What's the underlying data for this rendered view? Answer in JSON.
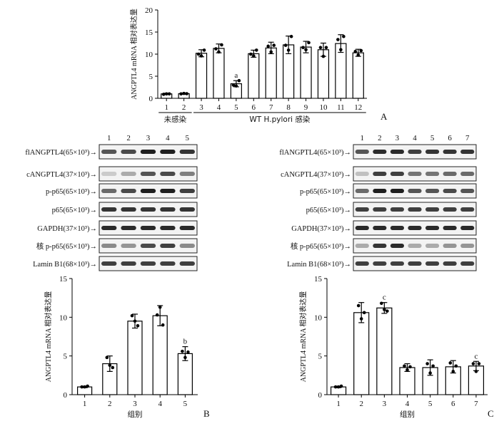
{
  "chart_data": [
    {
      "panel": "A",
      "type": "bar",
      "ylabel": "ANGPTL4 mRNA 相对表达量",
      "ylim": [
        0,
        20
      ],
      "yticks": [
        0,
        5,
        10,
        15,
        20
      ],
      "categories": [
        "1",
        "2",
        "3",
        "4",
        "5",
        "6",
        "7",
        "8",
        "9",
        "10",
        "11",
        "12"
      ],
      "values": [
        1.0,
        1.05,
        10.2,
        11.3,
        3.3,
        10.1,
        11.4,
        12.1,
        11.6,
        11.0,
        12.4,
        10.3
      ],
      "errors": [
        0.15,
        0.15,
        0.8,
        1.0,
        0.7,
        0.8,
        1.3,
        2.0,
        1.3,
        1.5,
        2.0,
        0.8
      ],
      "points": [
        [
          0.9,
          1.0,
          1.0
        ],
        [
          1.0,
          1.1,
          1.05
        ],
        [
          10.0,
          9.6,
          10.9
        ],
        [
          11.2,
          10.5,
          12.1
        ],
        [
          3.0,
          2.8,
          4.0
        ],
        [
          10.0,
          9.6,
          10.9
        ],
        [
          11.8,
          10.5,
          12.0
        ],
        [
          12.0,
          10.9,
          14.0
        ],
        [
          11.5,
          11.0,
          12.6
        ],
        [
          11.5,
          9.5,
          11.5
        ],
        [
          13.3,
          11.0,
          14.0
        ],
        [
          10.6,
          9.8,
          10.8
        ]
      ],
      "annotations": [
        {
          "index": 4,
          "text": "a"
        }
      ],
      "group_labels": [
        {
          "text": "未感染",
          "from": 0,
          "to": 1
        },
        {
          "text": "WT H.pylori 感染",
          "from": 2,
          "to": 11
        }
      ]
    },
    {
      "panel": "B",
      "type": "bar",
      "xlabel": "组别",
      "ylabel": "ANGPTL4 mRNA 相对表达量",
      "ylim": [
        0,
        15
      ],
      "yticks": [
        0,
        5,
        10,
        15
      ],
      "categories": [
        "1",
        "2",
        "3",
        "4",
        "5"
      ],
      "values": [
        1.0,
        4.0,
        9.5,
        10.2,
        5.3
      ],
      "errors": [
        0.1,
        1.0,
        0.9,
        1.3,
        0.9
      ],
      "points": [
        [
          1.0,
          1.0,
          1.1
        ],
        [
          4.8,
          3.8,
          3.5
        ],
        [
          10.2,
          9.5,
          8.9
        ],
        [
          10.3,
          11.3,
          9.0
        ],
        [
          5.6,
          4.8,
          5.5
        ]
      ],
      "annotations": [
        {
          "index": 4,
          "text": "b"
        }
      ]
    },
    {
      "panel": "C",
      "type": "bar",
      "xlabel": "组别",
      "ylabel": "ANGPTL4 mRNA 相对表达量",
      "ylim": [
        0,
        15
      ],
      "yticks": [
        0,
        5,
        10,
        15
      ],
      "categories": [
        "1",
        "2",
        "3",
        "4",
        "5",
        "6",
        "7"
      ],
      "values": [
        1.0,
        10.6,
        11.2,
        3.5,
        3.5,
        3.6,
        3.7
      ],
      "errors": [
        0.1,
        1.3,
        0.7,
        0.5,
        1.0,
        0.8,
        0.6
      ],
      "points": [
        [
          1.0,
          1.0,
          1.1
        ],
        [
          11.5,
          9.8,
          10.6
        ],
        [
          11.8,
          11.0,
          10.8
        ],
        [
          3.7,
          3.2,
          3.6
        ],
        [
          4.0,
          2.8,
          3.7
        ],
        [
          4.1,
          3.0,
          3.7
        ],
        [
          4.0,
          3.0,
          4.0
        ]
      ],
      "annotations": [
        {
          "index": 2,
          "text": "c"
        },
        {
          "index": 6,
          "text": "c"
        }
      ]
    }
  ],
  "panel_letters": {
    "a": "A",
    "b": "B",
    "c": "C"
  },
  "blots": {
    "left": {
      "lane_labels": [
        "1",
        "2",
        "3",
        "4",
        "5"
      ],
      "rows": [
        {
          "label": "flANGPTL4(65×10³)→",
          "intensity": [
            0.7,
            0.75,
            0.95,
            0.95,
            0.85
          ]
        },
        {
          "label": "cANGPTL4(37×10³)→",
          "intensity": [
            0.15,
            0.3,
            0.7,
            0.75,
            0.5
          ]
        },
        {
          "label": "p-p65(65×10³)→",
          "intensity": [
            0.6,
            0.75,
            0.95,
            0.95,
            0.8
          ]
        },
        {
          "label": "p65(65×10³)→",
          "intensity": [
            0.85,
            0.85,
            0.85,
            0.85,
            0.85
          ]
        },
        {
          "label": "GAPDH(37×10³)→",
          "intensity": [
            0.9,
            0.9,
            0.9,
            0.9,
            0.9
          ]
        },
        {
          "label": "核 p-p65(65×10³)→",
          "intensity": [
            0.45,
            0.4,
            0.75,
            0.8,
            0.45
          ]
        },
        {
          "label": "Lamin B1(68×10³)→",
          "intensity": [
            0.8,
            0.8,
            0.8,
            0.8,
            0.8
          ]
        }
      ]
    },
    "right": {
      "lane_labels": [
        "1",
        "2",
        "3",
        "4",
        "5",
        "6",
        "7"
      ],
      "rows": [
        {
          "label": "flANGPTL4(65×10³)→",
          "intensity": [
            0.7,
            0.9,
            0.9,
            0.8,
            0.85,
            0.85,
            0.85
          ]
        },
        {
          "label": "cANGPTL4(37×10³)→",
          "intensity": [
            0.2,
            0.8,
            0.8,
            0.55,
            0.55,
            0.6,
            0.6
          ]
        },
        {
          "label": "p-p65(65×10³)→",
          "intensity": [
            0.6,
            0.95,
            0.95,
            0.7,
            0.7,
            0.75,
            0.7
          ]
        },
        {
          "label": "p65(65×10³)→",
          "intensity": [
            0.8,
            0.8,
            0.8,
            0.8,
            0.8,
            0.8,
            0.8
          ]
        },
        {
          "label": "GAPDH(37×10³)→",
          "intensity": [
            0.9,
            0.9,
            0.9,
            0.9,
            0.9,
            0.9,
            0.9
          ]
        },
        {
          "label": "核 p-p65(65×10³)→",
          "intensity": [
            0.3,
            0.85,
            0.9,
            0.3,
            0.3,
            0.4,
            0.4
          ]
        },
        {
          "label": "Lamin B1(68×10³)→",
          "intensity": [
            0.8,
            0.8,
            0.8,
            0.8,
            0.8,
            0.8,
            0.8
          ]
        }
      ]
    }
  }
}
